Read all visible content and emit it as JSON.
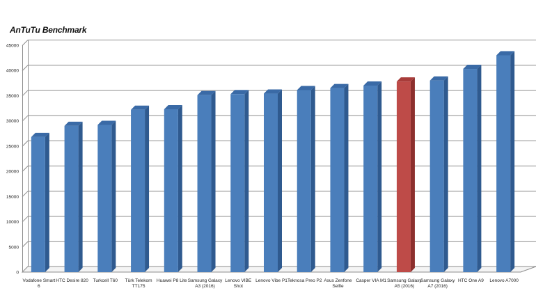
{
  "chart_data": {
    "type": "bar",
    "title": "AnTuTu Benchmark",
    "categories": [
      [
        "Vodafone Smart",
        "6"
      ],
      [
        "HTC Desire 820"
      ],
      [
        "Turkcell T60"
      ],
      [
        "Türk Telekom",
        "TT175"
      ],
      [
        "Huawei P8 Lite"
      ],
      [
        "Samsung Galaxy",
        "A3 (2016)"
      ],
      [
        "Lenovo VIBE",
        "Shot"
      ],
      [
        "Lenovo Vibe P1"
      ],
      [
        "Teknosa Preo P2"
      ],
      [
        "Asus Zenfone",
        "Selfie"
      ],
      [
        "Casper VIA M1"
      ],
      [
        "Samsung Galaxy",
        "A5 (2016)"
      ],
      [
        "Samsung Galaxy",
        "A7 (2016)"
      ],
      [
        "HTC One A9"
      ],
      [
        "Lenovo A7000"
      ]
    ],
    "values": [
      26800,
      29000,
      29200,
      32200,
      32300,
      35100,
      35300,
      35400,
      36100,
      36500,
      37000,
      37800,
      38000,
      40300,
      43000
    ],
    "highlight_index": 11,
    "ylim": [
      0,
      45000
    ],
    "yticks": [
      0,
      5000,
      10000,
      15000,
      20000,
      25000,
      30000,
      35000,
      40000,
      45000
    ],
    "grid": true,
    "colors": {
      "bar": "#4a7ebb",
      "bar_side": "#2f5a8f",
      "bar_top": "#3a6aa6",
      "highlight": "#be4b48",
      "highlight_side": "#8c2f2d",
      "highlight_top": "#a83c3a",
      "grid": "#8c8c8c",
      "axis": "#8c8c8c",
      "text": "#222222"
    }
  }
}
